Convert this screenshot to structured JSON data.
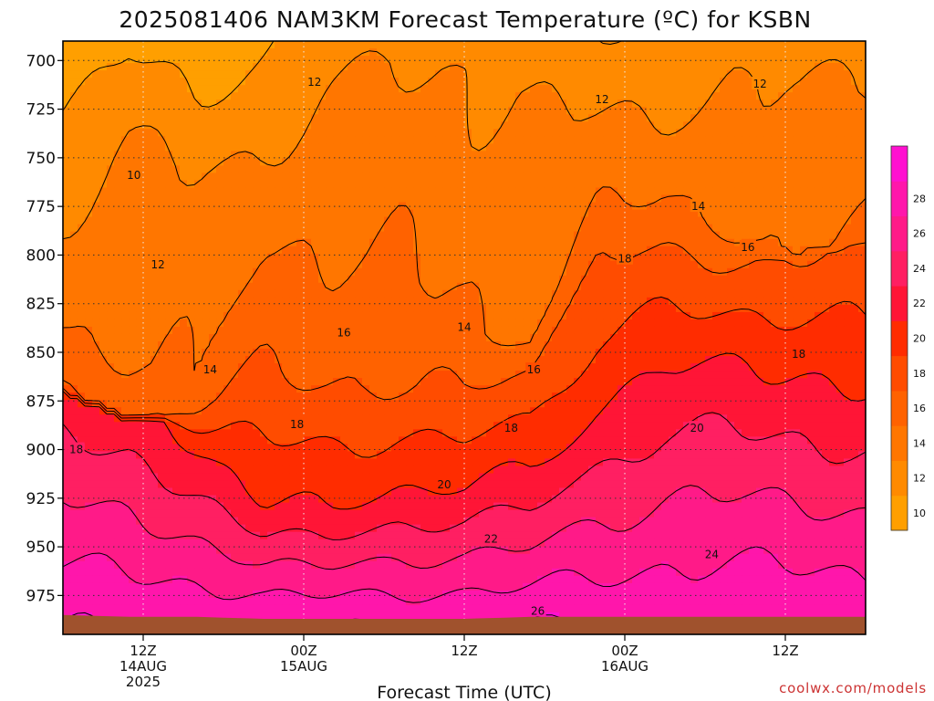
{
  "chart_data": {
    "type": "heatmap",
    "title": "2025081406 NAM3KM Forecast Temperature (ºC) for KSBN",
    "xlabel": "Forecast Time (UTC)",
    "ylabel": "",
    "y_ticks": [
      "700",
      "725",
      "750",
      "775",
      "800",
      "825",
      "850",
      "875",
      "900",
      "925",
      "950",
      "975"
    ],
    "y_values": [
      700,
      725,
      750,
      775,
      800,
      825,
      850,
      875,
      900,
      925,
      950,
      975
    ],
    "ylim": [
      690,
      995
    ],
    "x_ticks": [
      {
        "line1": "12Z",
        "line2": "14AUG",
        "line3": "2025",
        "hour": 6
      },
      {
        "line1": "00Z",
        "line2": "15AUG",
        "line3": "",
        "hour": 18
      },
      {
        "line1": "12Z",
        "line2": "",
        "line3": "",
        "hour": 30
      },
      {
        "line1": "00Z",
        "line2": "16AUG",
        "line3": "",
        "hour": 42
      },
      {
        "line1": "12Z",
        "line2": "",
        "line3": "",
        "hour": 54
      }
    ],
    "xlim": [
      0,
      60
    ],
    "grid": true,
    "colorbar": {
      "levels": [
        8,
        10,
        12,
        14,
        16,
        18,
        20,
        22,
        24,
        26,
        28,
        30
      ],
      "tick_labels": [
        "10",
        "12",
        "14",
        "16",
        "18",
        "20",
        "22",
        "24",
        "26",
        "28"
      ],
      "colors": [
        "#ff9f00",
        "#ff8a00",
        "#ff7600",
        "#ff6200",
        "#ff4c00",
        "#ff2c00",
        "#ff1536",
        "#ff1f62",
        "#ff1a88",
        "#ff16ab",
        "#ff10d0"
      ]
    },
    "contour_labels": [
      {
        "text": "10",
        "hour": 5.3,
        "pressure": 759
      },
      {
        "text": "12",
        "hour": 18.8,
        "pressure": 711
      },
      {
        "text": "12",
        "hour": 40.3,
        "pressure": 720
      },
      {
        "text": "12",
        "hour": 52.1,
        "pressure": 712
      },
      {
        "text": "12",
        "hour": 7.1,
        "pressure": 805
      },
      {
        "text": "14",
        "hour": 11.0,
        "pressure": 859
      },
      {
        "text": "14",
        "hour": 30.0,
        "pressure": 837
      },
      {
        "text": "14",
        "hour": 47.5,
        "pressure": 775
      },
      {
        "text": "16",
        "hour": 21.0,
        "pressure": 840
      },
      {
        "text": "16",
        "hour": 35.2,
        "pressure": 859
      },
      {
        "text": "16",
        "hour": 51.2,
        "pressure": 796
      },
      {
        "text": "18",
        "hour": 1.0,
        "pressure": 900
      },
      {
        "text": "18",
        "hour": 17.5,
        "pressure": 887
      },
      {
        "text": "18",
        "hour": 33.5,
        "pressure": 889
      },
      {
        "text": "18",
        "hour": 42.0,
        "pressure": 802
      },
      {
        "text": "18",
        "hour": 55.0,
        "pressure": 851
      },
      {
        "text": "20",
        "hour": 28.5,
        "pressure": 918
      },
      {
        "text": "20",
        "hour": 47.4,
        "pressure": 889
      },
      {
        "text": "22",
        "hour": 32.0,
        "pressure": 946
      },
      {
        "text": "24",
        "hour": 48.5,
        "pressure": 954
      },
      {
        "text": "26",
        "hour": 35.5,
        "pressure": 983
      }
    ],
    "fields": {
      "surface_pressure": [
        985,
        986,
        986,
        987,
        987,
        987,
        987,
        986,
        986,
        986,
        986,
        986,
        986
      ],
      "mixed_layer_top": [
        860,
        870,
        900,
        930,
        930,
        920,
        920,
        910,
        880,
        860,
        855,
        860,
        870
      ],
      "isotherm_12": [
        775,
        740,
        760,
        745,
        715,
        700,
        705,
        720,
        730,
        730,
        710,
        715,
        705
      ],
      "isotherm_14": [
        835,
        855,
        860,
        790,
        800,
        800,
        840,
        845,
        780,
        770,
        790,
        800,
        790
      ],
      "isotherm_16": [
        870,
        885,
        880,
        860,
        865,
        868,
        870,
        860,
        800,
        800,
        805,
        800,
        795
      ]
    }
  },
  "credit": "coolwx.com/models"
}
